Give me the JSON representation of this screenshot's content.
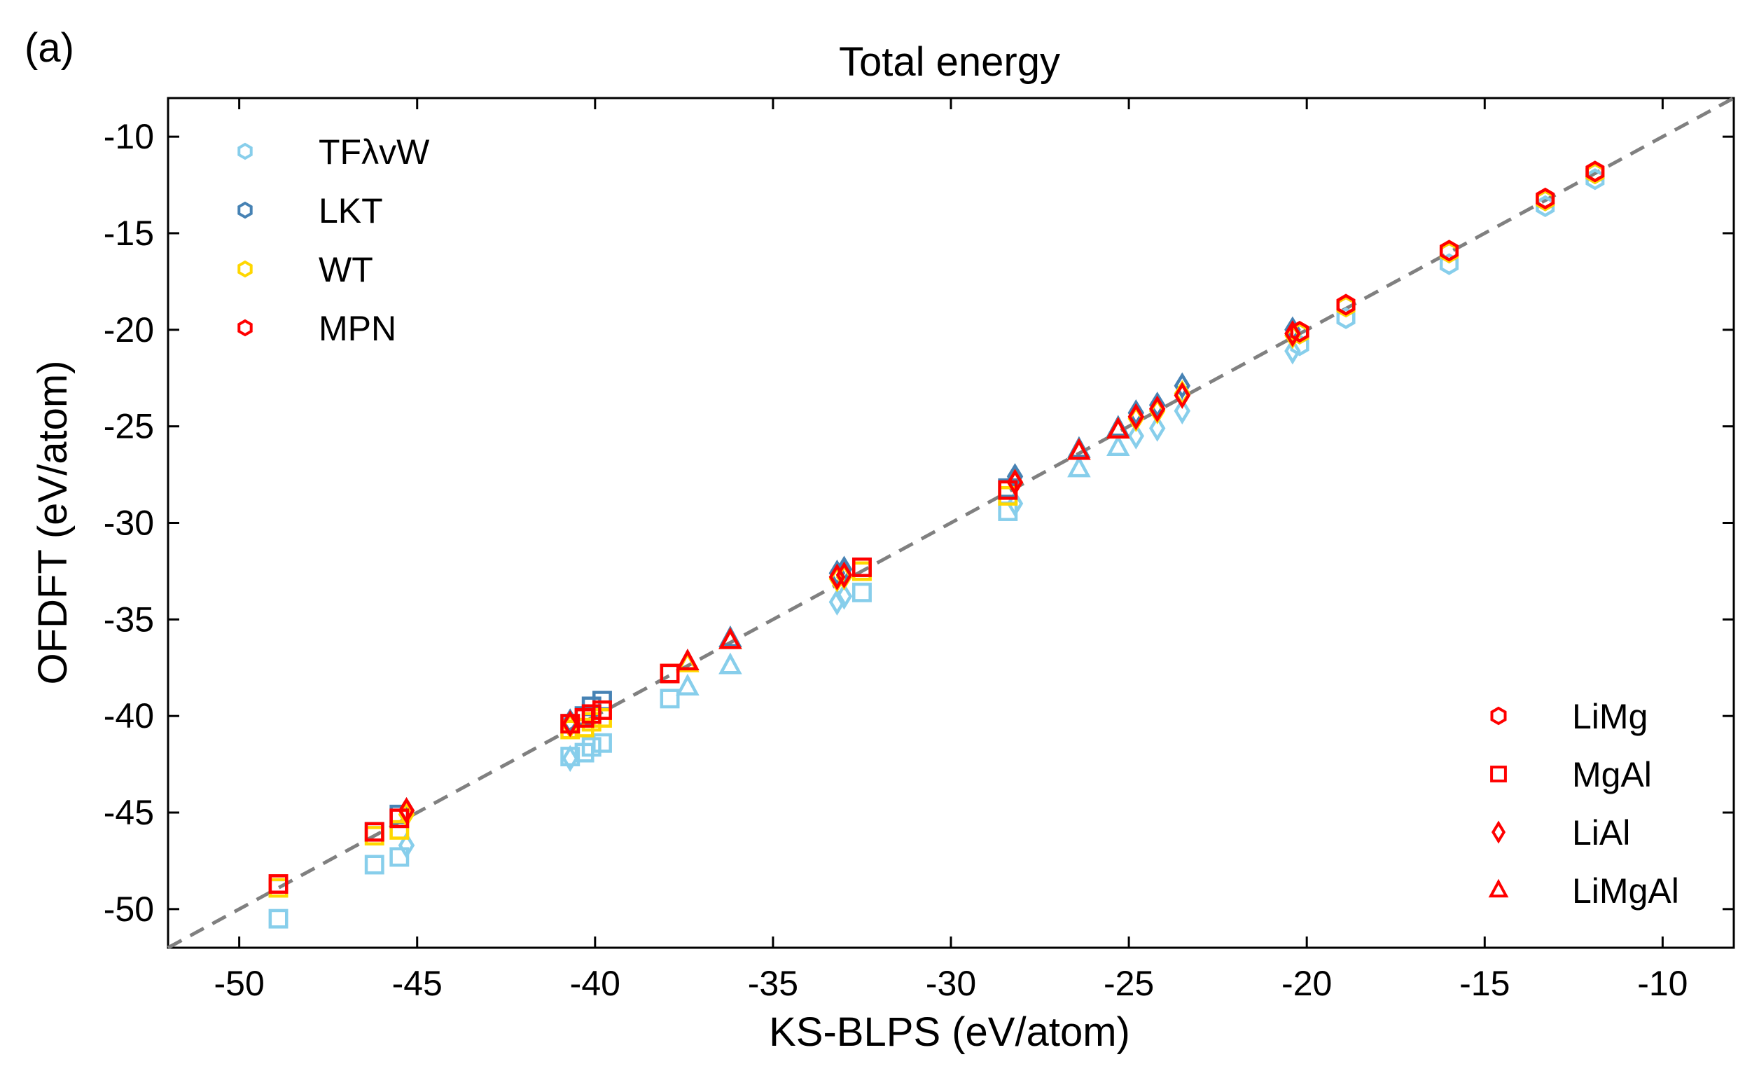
{
  "panel_label": "(a)",
  "colors": {
    "TFλvW": "#87ceeb",
    "LKT": "#4682b4",
    "WT": "#ffd700",
    "MPN": "#ff0000",
    "diagonal": "#808080",
    "legend_marker": "#ff0000"
  },
  "chart_data": {
    "type": "scatter",
    "title": "Total energy",
    "xlabel": "KS-BLPS (eV/atom)",
    "ylabel": "OFDFT (eV/atom)",
    "xlim": [
      -52,
      -8
    ],
    "ylim": [
      -52,
      -8
    ],
    "xticks": [
      -50,
      -45,
      -40,
      -35,
      -30,
      -25,
      -20,
      -15,
      -10
    ],
    "yticks": [
      -50,
      -45,
      -40,
      -35,
      -30,
      -25,
      -20,
      -15,
      -10
    ],
    "reference_line": "y = x",
    "legends": {
      "functional": [
        "TFλvW",
        "LKT",
        "WT",
        "MPN"
      ],
      "system": [
        {
          "label": "LiMg",
          "marker": "hexagon"
        },
        {
          "label": "MgAl",
          "marker": "square"
        },
        {
          "label": "LiAl",
          "marker": "diamond"
        },
        {
          "label": "LiMgAl",
          "marker": "triangle"
        }
      ]
    },
    "series": [
      {
        "name": "TFλvW",
        "system": "LiMg",
        "marker": "hexagon",
        "x": [
          -11.9,
          -13.3,
          -16.0,
          -18.9,
          -20.2
        ],
        "y": [
          -12.2,
          -13.6,
          -16.6,
          -19.4,
          -20.8
        ]
      },
      {
        "name": "TFλvW",
        "system": "MgAl",
        "marker": "square",
        "x": [
          -48.9,
          -46.2,
          -45.5,
          -40.7,
          -40.3,
          -40.1,
          -39.8,
          -37.9,
          -32.5,
          -28.4
        ],
        "y": [
          -50.5,
          -47.7,
          -47.3,
          -42.1,
          -41.9,
          -41.6,
          -41.4,
          -39.1,
          -33.6,
          -29.4
        ]
      },
      {
        "name": "TFλvW",
        "system": "LiAl",
        "marker": "diamond",
        "x": [
          -45.3,
          -40.7,
          -33.2,
          -33.0,
          -28.2,
          -24.8,
          -24.2,
          -23.5,
          -20.4
        ],
        "y": [
          -46.7,
          -42.2,
          -34.1,
          -33.8,
          -29.0,
          -25.5,
          -25.1,
          -24.2,
          -21.1
        ]
      },
      {
        "name": "TFλvW",
        "system": "LiMgAl",
        "marker": "triangle",
        "x": [
          -37.4,
          -36.2,
          -26.4,
          -25.3
        ],
        "y": [
          -38.5,
          -37.4,
          -27.2,
          -26.1
        ]
      },
      {
        "name": "LKT",
        "system": "LiMg",
        "marker": "hexagon",
        "x": [
          -11.9,
          -13.3,
          -16.0,
          -18.9,
          -20.2
        ],
        "y": [
          -11.9,
          -13.3,
          -16.0,
          -18.8,
          -20.2
        ]
      },
      {
        "name": "LKT",
        "system": "MgAl",
        "marker": "square",
        "x": [
          -48.9,
          -46.2,
          -45.5,
          -40.7,
          -40.3,
          -40.1,
          -39.8,
          -37.9,
          -32.5,
          -28.4
        ],
        "y": [
          -48.9,
          -46.0,
          -45.1,
          -40.4,
          -40.0,
          -39.5,
          -39.2,
          -37.8,
          -32.3,
          -28.2
        ]
      },
      {
        "name": "LKT",
        "system": "LiAl",
        "marker": "diamond",
        "x": [
          -45.3,
          -40.7,
          -33.2,
          -33.0,
          -28.2,
          -24.8,
          -24.2,
          -23.5,
          -20.4
        ],
        "y": [
          -44.9,
          -40.3,
          -32.6,
          -32.4,
          -27.6,
          -24.3,
          -23.9,
          -22.9,
          -20.0
        ]
      },
      {
        "name": "LKT",
        "system": "LiMgAl",
        "marker": "triangle",
        "x": [
          -37.4,
          -36.2,
          -26.4,
          -25.3
        ],
        "y": [
          -37.2,
          -36.0,
          -26.2,
          -25.1
        ]
      },
      {
        "name": "WT",
        "system": "LiMg",
        "marker": "hexagon",
        "x": [
          -11.9,
          -13.3,
          -16.0,
          -18.9,
          -20.2
        ],
        "y": [
          -11.9,
          -13.3,
          -16.0,
          -18.8,
          -20.2
        ]
      },
      {
        "name": "WT",
        "system": "MgAl",
        "marker": "square",
        "x": [
          -48.9,
          -46.2,
          -45.5,
          -40.7,
          -40.3,
          -40.1,
          -39.8,
          -37.9,
          -32.5,
          -28.4
        ],
        "y": [
          -48.9,
          -46.2,
          -45.9,
          -40.7,
          -40.6,
          -40.3,
          -40.1,
          -37.8,
          -32.5,
          -28.6
        ]
      },
      {
        "name": "WT",
        "system": "LiAl",
        "marker": "diamond",
        "x": [
          -45.3,
          -40.7,
          -33.2,
          -33.0,
          -28.2,
          -24.8,
          -24.2,
          -23.5,
          -20.4
        ],
        "y": [
          -45.1,
          -40.5,
          -32.9,
          -32.8,
          -27.9,
          -24.6,
          -24.2,
          -23.3,
          -20.3
        ]
      },
      {
        "name": "WT",
        "system": "LiMgAl",
        "marker": "triangle",
        "x": [
          -37.4,
          -36.2,
          -26.4,
          -25.3
        ],
        "y": [
          -37.3,
          -36.1,
          -26.3,
          -25.2
        ]
      },
      {
        "name": "MPN",
        "system": "LiMg",
        "marker": "hexagon",
        "x": [
          -11.9,
          -13.3,
          -16.0,
          -18.9,
          -20.2
        ],
        "y": [
          -11.8,
          -13.2,
          -15.9,
          -18.7,
          -20.1
        ]
      },
      {
        "name": "MPN",
        "system": "MgAl",
        "marker": "square",
        "x": [
          -48.9,
          -46.2,
          -45.5,
          -40.7,
          -40.3,
          -40.1,
          -39.8,
          -37.9,
          -32.5,
          -28.4
        ],
        "y": [
          -48.7,
          -46.0,
          -45.3,
          -40.4,
          -40.1,
          -39.9,
          -39.7,
          -37.8,
          -32.3,
          -28.3
        ]
      },
      {
        "name": "MPN",
        "system": "LiAl",
        "marker": "diamond",
        "x": [
          -45.3,
          -40.7,
          -33.2,
          -33.0,
          -28.2,
          -24.8,
          -24.2,
          -23.5,
          -20.4
        ],
        "y": [
          -44.9,
          -40.4,
          -32.8,
          -32.7,
          -27.9,
          -24.5,
          -24.1,
          -23.4,
          -20.2
        ]
      },
      {
        "name": "MPN",
        "system": "LiMgAl",
        "marker": "triangle",
        "x": [
          -37.4,
          -36.2,
          -26.4,
          -25.3
        ],
        "y": [
          -37.2,
          -36.1,
          -26.3,
          -25.2
        ]
      }
    ]
  }
}
